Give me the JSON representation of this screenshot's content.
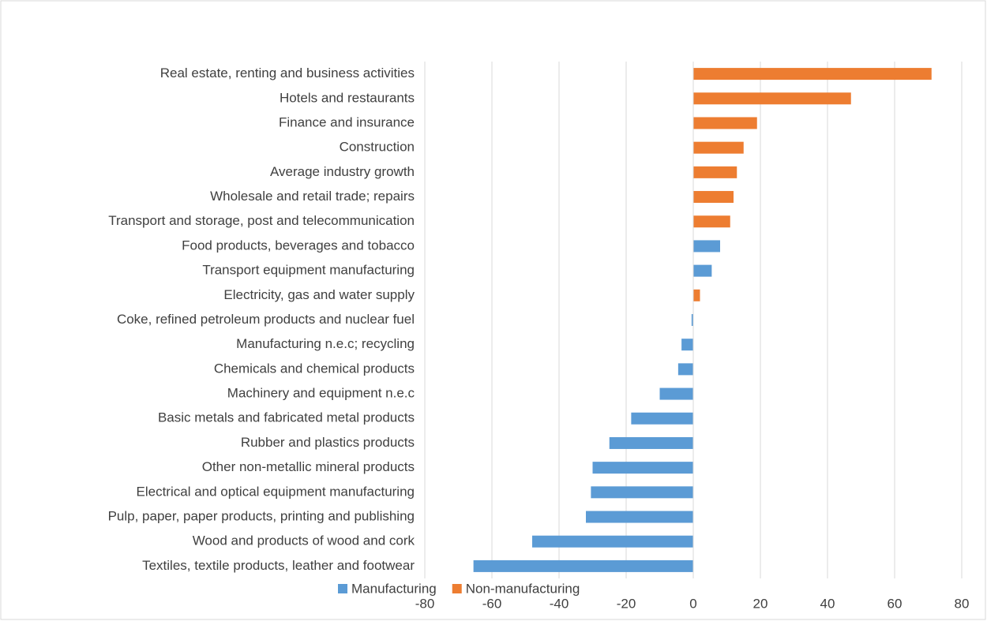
{
  "chart_data": {
    "type": "barh",
    "categories": [
      "Real estate, renting and business activities",
      "Hotels and restaurants",
      "Finance and insurance",
      "Construction",
      "Average industry growth",
      "Wholesale and retail trade; repairs",
      "Transport and storage, post and telecommunication",
      "Food products, beverages and tobacco",
      "Transport equipment manufacturing",
      "Electricity, gas and water supply",
      "Coke, refined petroleum products and nuclear fuel",
      "Manufacturing n.e.c; recycling",
      "Chemicals and chemical products",
      "Machinery and equipment n.e.c",
      "Basic metals and fabricated metal products",
      "Rubber and plastics products",
      "Other non-metallic mineral products",
      "Electrical and optical equipment manufacturing",
      "Pulp, paper, paper products, printing and publishing",
      "Wood and products of wood and cork",
      "Textiles, textile products, leather and footwear"
    ],
    "series": [
      {
        "name": "Manufacturing",
        "color": "#5b9bd5",
        "values": [
          null,
          null,
          null,
          null,
          null,
          null,
          null,
          8,
          5.5,
          null,
          -0.5,
          -3.5,
          -4.5,
          -10,
          -18.5,
          -25,
          -30,
          -30.5,
          -32,
          -48,
          -65.5
        ]
      },
      {
        "name": "Non-manufacturing",
        "color": "#ed7d31",
        "values": [
          71,
          47,
          19,
          15,
          13,
          12,
          11,
          null,
          null,
          2,
          null,
          null,
          null,
          null,
          null,
          null,
          null,
          null,
          null,
          null,
          null
        ]
      }
    ],
    "xlim": [
      -80,
      80
    ],
    "xticks": [
      -80,
      -60,
      -40,
      -20,
      0,
      20,
      40,
      60,
      80
    ],
    "grid": true
  }
}
